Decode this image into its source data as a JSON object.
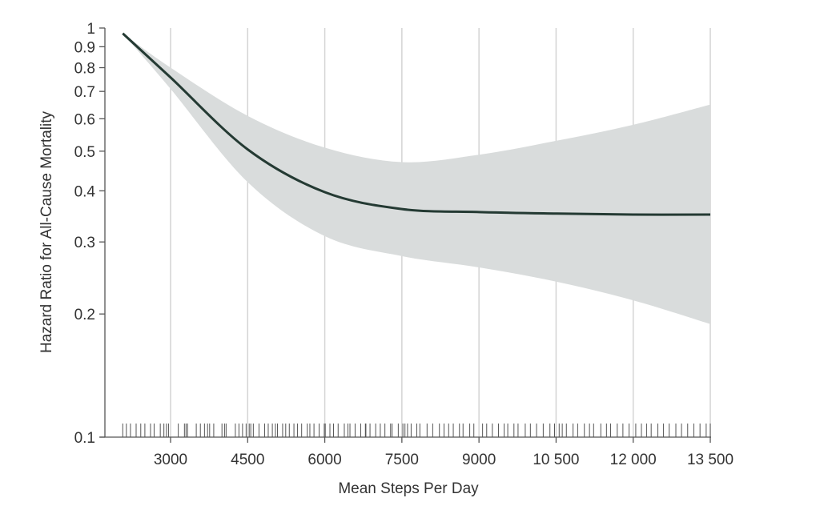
{
  "chart_data": {
    "type": "line",
    "title": "",
    "xlabel": "Mean Steps Per Day",
    "ylabel": "Hazard Ratio for All-Cause Mortality",
    "xlim": [
      1700,
      13500
    ],
    "ylim": [
      0.1,
      1
    ],
    "yscale": "log",
    "grid": "vertical",
    "x_ticks": [
      3000,
      4500,
      6000,
      7500,
      9000,
      10500,
      12000,
      13500
    ],
    "x_tick_labels": [
      "3000",
      "4500",
      "6000",
      "7500",
      "9000",
      "10 500",
      "12 000",
      "13 500"
    ],
    "y_ticks": [
      1,
      0.9,
      0.8,
      0.7,
      0.6,
      0.5,
      0.4,
      0.3,
      0.2,
      0.1
    ],
    "y_tick_labels": [
      "1",
      "0.9",
      "0.8",
      "0.7",
      "0.6",
      "0.5",
      "0.4",
      "0.3",
      "0.2",
      "0.1"
    ],
    "series": [
      {
        "name": "Hazard ratio",
        "x": [
          2070,
          3000,
          4500,
          6000,
          7500,
          9000,
          10500,
          12000,
          13500
        ],
        "y": [
          0.97,
          0.757,
          0.505,
          0.397,
          0.361,
          0.355,
          0.352,
          0.35,
          0.35
        ],
        "upper": [
          0.97,
          0.8,
          0.61,
          0.51,
          0.47,
          0.49,
          0.53,
          0.58,
          0.65
        ],
        "lower": [
          0.97,
          0.71,
          0.42,
          0.31,
          0.277,
          0.26,
          0.24,
          0.216,
          0.189
        ],
        "color": "#243a33",
        "band_color": "#d9dcdc"
      }
    ],
    "rug": [
      2070,
      2140,
      2220,
      2330,
      2420,
      2500,
      2610,
      2680,
      2800,
      2870,
      2920,
      2960,
      3150,
      3270,
      3300,
      3330,
      3500,
      3580,
      3660,
      3720,
      3760,
      3840,
      4000,
      4050,
      4080,
      4260,
      4330,
      4400,
      4470,
      4530,
      4560,
      4610,
      4720,
      4830,
      4900,
      4980,
      5040,
      5080,
      5180,
      5240,
      5310,
      5400,
      5470,
      5550,
      5660,
      5710,
      5790,
      5890,
      5990,
      6010,
      6100,
      6170,
      6260,
      6380,
      6450,
      6490,
      6590,
      6700,
      6790,
      6800,
      6880,
      6990,
      7080,
      7170,
      7280,
      7310,
      7430,
      7520,
      7560,
      7610,
      7680,
      7790,
      7850,
      7990,
      8100,
      8230,
      8320,
      8410,
      8500,
      8620,
      8690,
      8820,
      8900,
      9070,
      9150,
      9260,
      9380,
      9490,
      9560,
      9680,
      9760,
      9900,
      10000,
      10120,
      10250,
      10380,
      10470,
      10560,
      10620,
      10700,
      10830,
      10920,
      11050,
      11150,
      11230,
      11370,
      11480,
      11560,
      11690,
      11800,
      11920,
      12050,
      12160,
      12260,
      12350,
      12480,
      12590,
      12700,
      12830,
      12940,
      13060,
      13180,
      13300,
      13420,
      13500
    ]
  }
}
